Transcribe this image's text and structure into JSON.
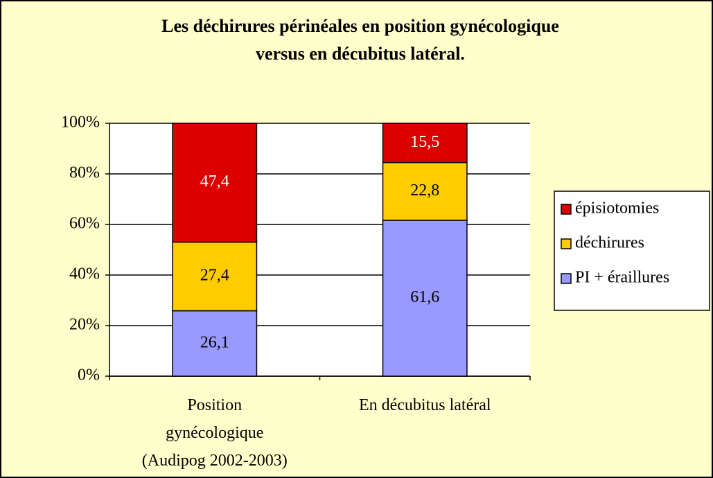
{
  "chart_data": {
    "type": "bar",
    "stack": "percent",
    "title": "Les déchirures périnéales en position gynécologique\nversus en décubitus latéral.",
    "categories": [
      "Position\ngynécologique\n(Audipog 2002-2003)",
      "En décubitus latéral"
    ],
    "series": [
      {
        "name": "PI + éraillures",
        "color": "#9999ff",
        "label_color": "#000000",
        "values": [
          26.1,
          61.6
        ],
        "value_labels": [
          "26,1",
          "61,6"
        ]
      },
      {
        "name": "déchirures",
        "color": "#ffcc00",
        "label_color": "#000000",
        "values": [
          27.4,
          22.8
        ],
        "value_labels": [
          "27,4",
          "22,8"
        ]
      },
      {
        "name": "épisiotomies",
        "color": "#dd0000",
        "label_color": "#ffffff",
        "values": [
          47.4,
          15.5
        ],
        "value_labels": [
          "47,4",
          "15,5"
        ]
      }
    ],
    "ylim": [
      0,
      100
    ],
    "yticks": [
      {
        "value": 0,
        "label": "0%"
      },
      {
        "value": 20,
        "label": "20%"
      },
      {
        "value": 40,
        "label": "40%"
      },
      {
        "value": 60,
        "label": "60%"
      },
      {
        "value": 80,
        "label": "80%"
      },
      {
        "value": 100,
        "label": "100%"
      }
    ],
    "grid": true,
    "legend": "right"
  }
}
